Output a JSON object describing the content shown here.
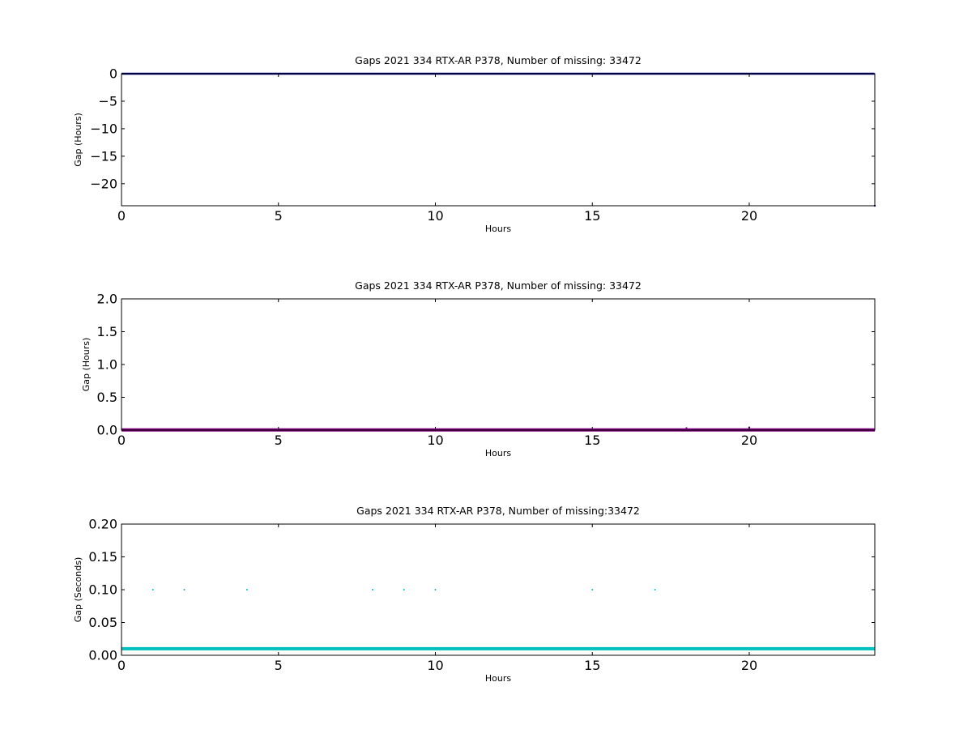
{
  "chart_data": [
    {
      "type": "line",
      "title": "Gaps 2021 334 RTX-AR  P378, Number of missing: 33472",
      "xlabel": "Hours",
      "ylabel": "Gap (Hours)",
      "xlim": [
        0,
        24
      ],
      "ylim": [
        -24,
        0
      ],
      "xticks": [
        "0",
        "5",
        "10",
        "15",
        "20"
      ],
      "yticks": [
        "0",
        "−5",
        "−10",
        "−15",
        "−20"
      ],
      "grid": false,
      "series": [
        {
          "color": "#00007f",
          "style": "line",
          "x": [
            0,
            23.99
          ],
          "y": [
            0,
            0
          ]
        },
        {
          "color": "#00007f",
          "style": "points",
          "x": [
            24
          ],
          "y": [
            -24
          ]
        }
      ]
    },
    {
      "type": "line",
      "title": "Gaps 2021 334 RTX-AR  P378, Number of missing: 33472",
      "xlabel": "Hours",
      "ylabel": "Gap (Hours)",
      "xlim": [
        0,
        24
      ],
      "ylim": [
        0,
        2
      ],
      "xticks": [
        "0",
        "5",
        "10",
        "15",
        "20"
      ],
      "yticks": [
        "0.0",
        "0.5",
        "1.0",
        "1.5",
        "2.0"
      ],
      "grid": false,
      "series": [
        {
          "color": "#800080",
          "style": "line",
          "x": [
            0,
            24
          ],
          "y": [
            0.003,
            0.003
          ]
        },
        {
          "color": "#800080",
          "style": "points",
          "x": [
            18,
            20
          ],
          "y": [
            0.03,
            0.04
          ]
        }
      ]
    },
    {
      "type": "scatter",
      "title": "Gaps 2021 334 RTX-AR  P378, Number of missing:33472",
      "xlabel": "Hours",
      "ylabel": "Gap (Seconds)",
      "xlim": [
        0,
        24
      ],
      "ylim": [
        0,
        0.2
      ],
      "xticks": [
        "0",
        "5",
        "10",
        "15",
        "20"
      ],
      "yticks": [
        "0.00",
        "0.05",
        "0.10",
        "0.15",
        "0.20"
      ],
      "grid": false,
      "series": [
        {
          "color": "#00bfbf",
          "style": "line",
          "x": [
            0,
            24
          ],
          "y": [
            0.01,
            0.01
          ]
        },
        {
          "color": "#00bfbf",
          "style": "points",
          "x": [
            1,
            2,
            4,
            8,
            9,
            10,
            15,
            17
          ],
          "y": [
            0.1,
            0.1,
            0.1,
            0.1,
            0.1,
            0.1,
            0.1,
            0.1
          ]
        }
      ]
    }
  ]
}
